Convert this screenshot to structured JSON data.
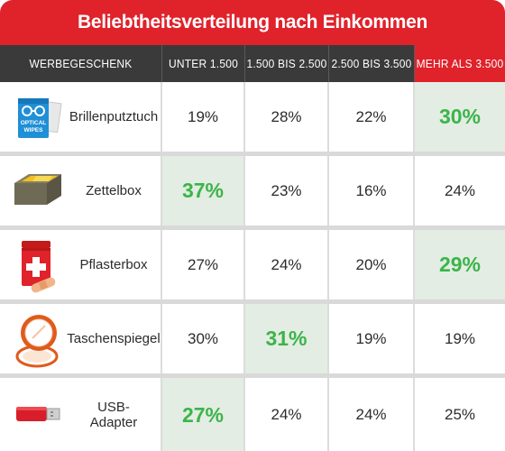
{
  "title": "Beliebtheitsverteilung nach Einkommen",
  "chart_data": {
    "type": "table",
    "title": "Beliebtheitsverteilung nach Einkommen",
    "columns": [
      "WERBEGESCHENK",
      "UNTER 1.500",
      "1.500 BIS 2.500",
      "2.500 BIS 3.500",
      "MEHR ALS 3.500"
    ],
    "highlighted_column": "MEHR ALS 3.500",
    "rows": [
      {
        "item": "Brillenputztuch",
        "icon": "optical-wipes-icon",
        "values": [
          "19%",
          "28%",
          "22%",
          "30%"
        ],
        "best_index": 3
      },
      {
        "item": "Zettelbox",
        "icon": "note-box-icon",
        "values": [
          "37%",
          "23%",
          "16%",
          "24%"
        ],
        "best_index": 0
      },
      {
        "item": "Pflasterbox",
        "icon": "first-aid-box-icon",
        "values": [
          "27%",
          "24%",
          "20%",
          "29%"
        ],
        "best_index": 3
      },
      {
        "item": "Taschenspiegel",
        "icon": "pocket-mirror-icon",
        "values": [
          "30%",
          "31%",
          "19%",
          "19%"
        ],
        "best_index": 1
      },
      {
        "item": "USB-Adapter",
        "icon": "usb-adapter-icon",
        "values": [
          "27%",
          "24%",
          "24%",
          "25%"
        ],
        "best_index": 0
      }
    ]
  },
  "icon_text": {
    "optical": "OPTICAL",
    "wipes": "WIPES"
  },
  "colors": {
    "title_bg": "#e0222b",
    "header_bg": "#3a3a3a",
    "best_text": "#3cb44a",
    "best_bg": "#e3ede3"
  }
}
